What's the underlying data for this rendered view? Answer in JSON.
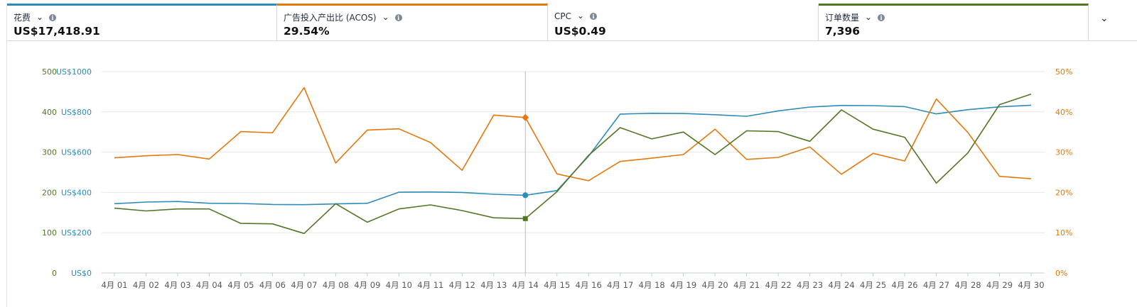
{
  "metrics": [
    {
      "label": "花费",
      "value": "US$17,418.91",
      "color": "#2e8cb8"
    },
    {
      "label": "广告投入产出比 (ACOS)",
      "value": "29.54%",
      "color": "#e3790e"
    },
    {
      "label": "CPC",
      "value": "US$0.49",
      "color": ""
    },
    {
      "label": "订单数量",
      "value": "7,396",
      "color": "#527625"
    }
  ],
  "chart_data": {
    "type": "line",
    "categories": [
      "4月 01",
      "4月 02",
      "4月 03",
      "4月 04",
      "4月 05",
      "4月 06",
      "4月 07",
      "4月 08",
      "4月 09",
      "4月 10",
      "4月 11",
      "4月 12",
      "4月 13",
      "4月 14",
      "4月 15",
      "4月 16",
      "4月 17",
      "4月 18",
      "4月 19",
      "4月 20",
      "4月 21",
      "4月 22",
      "4月 23",
      "4月 24",
      "4月 25",
      "4月 26",
      "4月 27",
      "4月 28",
      "4月 29",
      "4月 30"
    ],
    "axes": {
      "orders": {
        "ticks": [
          "0",
          "100",
          "200",
          "300",
          "400",
          "500"
        ],
        "ylim": [
          0,
          500
        ],
        "color": "#527625"
      },
      "spend": {
        "ticks": [
          "US$0",
          "US$200",
          "US$400",
          "US$600",
          "US$800",
          "US$1000"
        ],
        "ylim": [
          0,
          1000
        ],
        "color": "#2e8cb8"
      },
      "acos": {
        "ticks": [
          "0%",
          "10%",
          "20%",
          "30%",
          "40%",
          "50%"
        ],
        "ylim": [
          0,
          50
        ],
        "color": "#e3790e"
      }
    },
    "series": [
      {
        "key": "spend",
        "axis": "spend",
        "color": "#2e8cb8",
        "values": [
          344,
          352,
          355,
          346,
          345,
          340,
          339,
          343,
          346,
          401,
          402,
          400,
          391,
          386,
          409,
          580,
          789,
          793,
          792,
          786,
          778,
          805,
          824,
          832,
          831,
          826,
          790,
          811,
          825,
          833
        ]
      },
      {
        "key": "acos",
        "axis": "acos",
        "color": "#e3790e",
        "values": [
          28.6,
          29.1,
          29.4,
          28.3,
          35.1,
          34.8,
          46.0,
          27.3,
          35.5,
          35.8,
          32.4,
          25.5,
          39.2,
          38.6,
          24.6,
          22.9,
          27.7,
          28.5,
          29.4,
          35.7,
          28.2,
          28.7,
          31.3,
          24.5,
          29.7,
          27.8,
          43.2,
          34.9,
          24.0,
          23.4
        ]
      },
      {
        "key": "orders",
        "axis": "orders",
        "color": "#527625",
        "values": [
          161,
          154,
          159,
          159,
          123,
          122,
          98,
          172,
          126,
          159,
          169,
          155,
          137,
          135,
          202,
          292,
          361,
          333,
          350,
          294,
          353,
          351,
          327,
          405,
          357,
          337,
          223,
          298,
          418,
          444
        ]
      }
    ],
    "hover": {
      "index": 13
    },
    "grid": true,
    "legend": "none"
  }
}
